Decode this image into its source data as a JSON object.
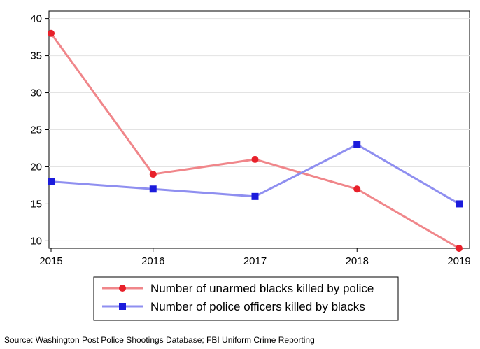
{
  "chart_data": {
    "type": "line",
    "x": [
      "2015",
      "2016",
      "2017",
      "2018",
      "2019"
    ],
    "ylim": [
      9,
      41
    ],
    "yticks": [
      10,
      15,
      20,
      25,
      30,
      35,
      40
    ],
    "grid": true,
    "legend_position": "bottom",
    "series": [
      {
        "name": "Number of unarmed blacks killed by police",
        "values": [
          38,
          19,
          21,
          17,
          9
        ],
        "line_color": "#f0868a",
        "marker": "circle",
        "marker_color": "#e8202a"
      },
      {
        "name": "Number of police officers killed by blacks",
        "values": [
          18,
          17,
          16,
          23,
          15
        ],
        "line_color": "#8f8ff0",
        "marker": "square",
        "marker_color": "#1b1bdc"
      }
    ],
    "source": "Source: Washington Post Police Shootings Database; FBI Uniform Crime Reporting"
  }
}
